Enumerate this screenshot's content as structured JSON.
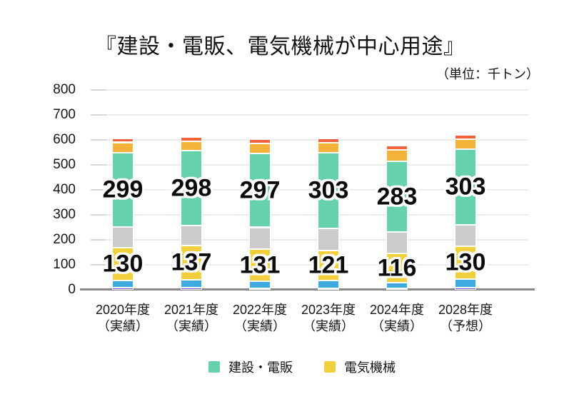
{
  "page": {
    "title": "『建設・電販、電気機械が中心用途』",
    "unit_note": "（単位：千トン）"
  },
  "chart_data": {
    "type": "bar",
    "stacked": true,
    "title": "『建設・電販、電気機械が中心用途』",
    "unit_note": "（単位：千トン）",
    "grid": true,
    "legend_position": "bottom",
    "ylim": [
      0,
      800
    ],
    "yticks": [
      0,
      100,
      200,
      300,
      400,
      500,
      600,
      700,
      800
    ],
    "categories": [
      "2020年度",
      "2021年度",
      "2022年度",
      "2023年度",
      "2024年度",
      "2028年度"
    ],
    "category_sublabels": [
      "（実績）",
      "（実績）",
      "（実績）",
      "（実績）",
      "（実績）",
      "（予想）"
    ],
    "series": [
      {
        "key": "bottom-purple",
        "label": "",
        "color": "#6e55cb",
        "show_value_labels": false,
        "values": [
          8,
          8,
          7,
          7,
          6,
          8
        ]
      },
      {
        "key": "blue",
        "label": "",
        "color": "#3faadd",
        "show_value_labels": false,
        "values": [
          30,
          32,
          26,
          29,
          23,
          35
        ]
      },
      {
        "key": "denki-kikai",
        "label": "電気機械",
        "color": "#f2cf3d",
        "show_value_labels": true,
        "values": [
          130,
          137,
          131,
          121,
          116,
          130
        ]
      },
      {
        "key": "gray",
        "label": "",
        "color": "#cccccc",
        "show_value_labels": false,
        "values": [
          83,
          81,
          86,
          88,
          86,
          88
        ]
      },
      {
        "key": "kensetsu-denpan",
        "label": "建設・電販",
        "color": "#66d2ac",
        "show_value_labels": true,
        "values": [
          299,
          298,
          297,
          303,
          283,
          303
        ]
      },
      {
        "key": "amber",
        "label": "",
        "color": "#f3b23a",
        "show_value_labels": false,
        "values": [
          40,
          38,
          38,
          40,
          46,
          38
        ]
      },
      {
        "key": "top-red",
        "label": "",
        "color": "#f2623b",
        "show_value_labels": false,
        "values": [
          17,
          17,
          17,
          17,
          17,
          18
        ]
      }
    ],
    "legend": [
      {
        "label": "建設・電販",
        "color": "#66d2ac"
      },
      {
        "label": "電気機械",
        "color": "#f2cf3d"
      }
    ]
  }
}
